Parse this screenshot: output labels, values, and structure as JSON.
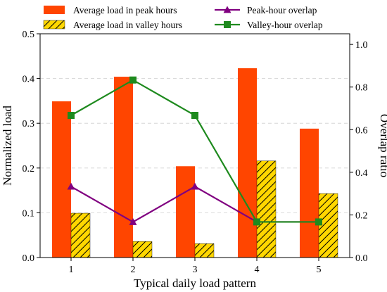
{
  "chart_data": {
    "type": "bar",
    "xlabel": "Typical daily load pattern",
    "ylabel": "Normalized load",
    "y2label": "Overlap ratio",
    "categories": [
      "1",
      "2",
      "3",
      "4",
      "5"
    ],
    "ylim": [
      0,
      0.5
    ],
    "y2lim": [
      0,
      1.05
    ],
    "y_ticks": [
      "0.0",
      "0.1",
      "0.2",
      "0.3",
      "0.4",
      "0.5"
    ],
    "y2_ticks": [
      "0.0",
      "0.2",
      "0.4",
      "0.6",
      "0.8",
      "1.0"
    ],
    "grid": true,
    "legend_position": "top",
    "bar_series": [
      {
        "name": "Average load in peak hours",
        "values": [
          0.349,
          0.404,
          0.204,
          0.423,
          0.288
        ],
        "color": "#ff4500"
      },
      {
        "name": "Average load in valley hours",
        "values": [
          0.099,
          0.036,
          0.031,
          0.216,
          0.143
        ],
        "color": "#ffd700",
        "hatch": "diagonal"
      }
    ],
    "line_series": [
      {
        "name": "Peak-hour overlap",
        "axis": "right",
        "values": [
          0.333,
          0.167,
          0.333,
          0.167,
          0.167
        ],
        "color": "#800080",
        "marker": "triangle"
      },
      {
        "name": "Valley-hour overlap",
        "axis": "right",
        "values": [
          0.667,
          0.833,
          0.667,
          0.167,
          0.167
        ],
        "color": "#1e8a1e",
        "marker": "square"
      }
    ]
  }
}
